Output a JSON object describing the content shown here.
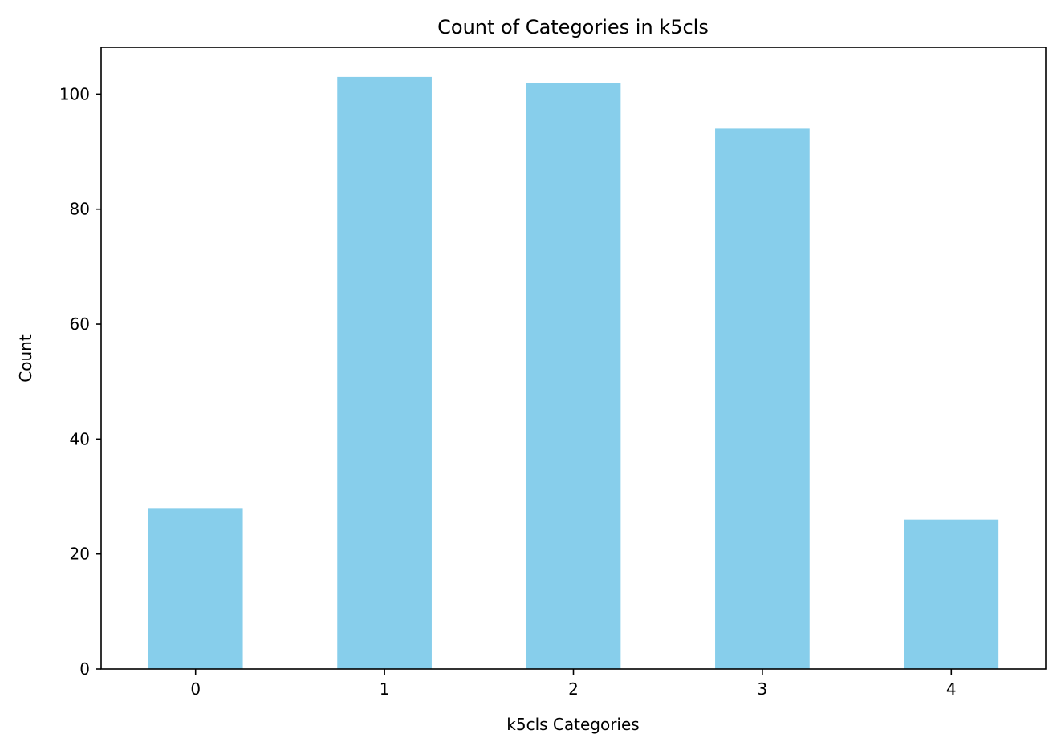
{
  "chart_data": {
    "type": "bar",
    "title": "Count of Categories in k5cls",
    "xlabel": "k5cls Categories",
    "ylabel": "Count",
    "categories": [
      "0",
      "1",
      "2",
      "3",
      "4"
    ],
    "values": [
      28,
      103,
      102,
      94,
      26
    ],
    "ylim": [
      0,
      108.15
    ],
    "yticks": [
      0,
      20,
      40,
      60,
      80,
      100
    ],
    "bar_color": "#87CEEB",
    "grid": false,
    "legend": "none"
  }
}
